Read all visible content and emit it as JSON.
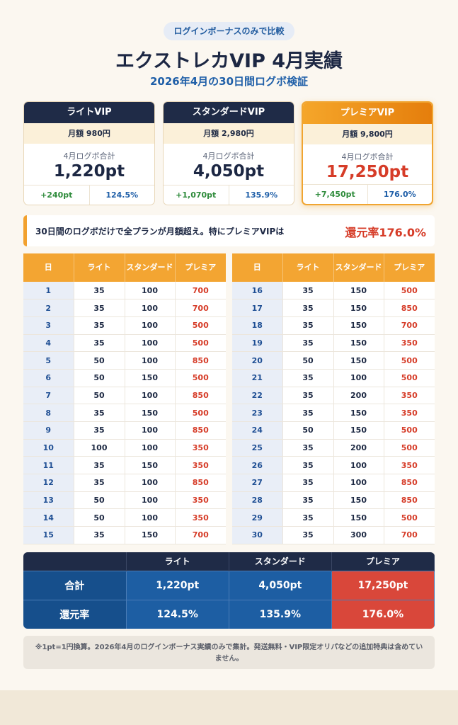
{
  "header": {
    "pill": "ログインボーナスのみで比較",
    "title": "エクストレカVIP 4月実績",
    "subtitle": "2026年4月の30日間ログボ検証"
  },
  "cards": [
    {
      "name": "ライトVIP",
      "price": "月額 980円",
      "label": "4月ログボ合計",
      "total": "1,220pt",
      "plus": "+240pt",
      "rate": "124.5%"
    },
    {
      "name": "スタンダードVIP",
      "price": "月額 2,980円",
      "label": "4月ログボ合計",
      "total": "4,050pt",
      "plus": "+1,070pt",
      "rate": "135.9%"
    },
    {
      "name": "プレミアVIP",
      "price": "月額 9,800円",
      "label": "4月ログボ合計",
      "total": "17,250pt",
      "plus": "+7,450pt",
      "rate": "176.0%"
    }
  ],
  "notice": {
    "message": "30日間のログボだけで全プランが月額超え。特にプレミアVIPは",
    "emphasis": "還元率176.0%"
  },
  "daily_table": {
    "headers": [
      "日",
      "ライト",
      "スタンダード",
      "プレミア"
    ],
    "rows": [
      [
        "1",
        "35",
        "100",
        "700"
      ],
      [
        "2",
        "35",
        "100",
        "700"
      ],
      [
        "3",
        "35",
        "100",
        "500"
      ],
      [
        "4",
        "35",
        "100",
        "500"
      ],
      [
        "5",
        "50",
        "100",
        "850"
      ],
      [
        "6",
        "50",
        "150",
        "500"
      ],
      [
        "7",
        "50",
        "100",
        "850"
      ],
      [
        "8",
        "35",
        "150",
        "500"
      ],
      [
        "9",
        "35",
        "100",
        "850"
      ],
      [
        "10",
        "100",
        "100",
        "350"
      ],
      [
        "11",
        "35",
        "150",
        "350"
      ],
      [
        "12",
        "35",
        "100",
        "850"
      ],
      [
        "13",
        "50",
        "100",
        "350"
      ],
      [
        "14",
        "50",
        "100",
        "350"
      ],
      [
        "15",
        "35",
        "150",
        "700"
      ],
      [
        "16",
        "35",
        "150",
        "500"
      ],
      [
        "17",
        "35",
        "150",
        "850"
      ],
      [
        "18",
        "35",
        "150",
        "700"
      ],
      [
        "19",
        "35",
        "150",
        "350"
      ],
      [
        "20",
        "50",
        "150",
        "500"
      ],
      [
        "21",
        "35",
        "100",
        "500"
      ],
      [
        "22",
        "35",
        "200",
        "350"
      ],
      [
        "23",
        "35",
        "150",
        "350"
      ],
      [
        "24",
        "50",
        "150",
        "500"
      ],
      [
        "25",
        "35",
        "200",
        "500"
      ],
      [
        "26",
        "35",
        "100",
        "350"
      ],
      [
        "27",
        "35",
        "100",
        "850"
      ],
      [
        "28",
        "35",
        "150",
        "850"
      ],
      [
        "29",
        "35",
        "150",
        "500"
      ],
      [
        "30",
        "35",
        "300",
        "700"
      ]
    ]
  },
  "summary": {
    "headers": [
      "",
      "ライト",
      "スタンダード",
      "プレミア"
    ],
    "rows": [
      [
        "合計",
        "1,220pt",
        "4,050pt",
        "17,250pt"
      ],
      [
        "還元率",
        "124.5%",
        "135.9%",
        "176.0%"
      ]
    ]
  },
  "footnote": "※1pt=1円換算。2026年4月のログインボーナス実績のみで集計。発送無料・VIP限定オリパなどの追加特典は含めていません。"
}
